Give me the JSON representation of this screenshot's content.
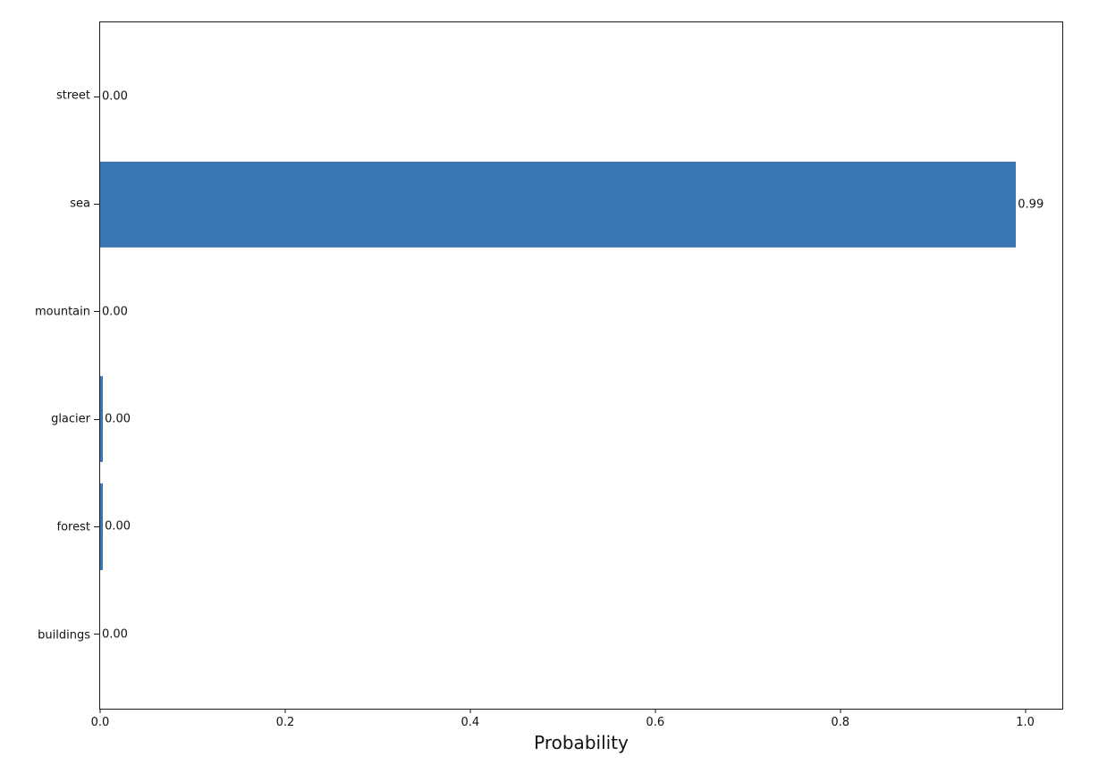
{
  "figure": {
    "background": "#ffffff",
    "bar_color": "#3A76B1",
    "axis_color": "#1a1a1a",
    "text_color": "#111111"
  },
  "chart_data": {
    "type": "bar",
    "orientation": "horizontal",
    "xlabel": "Probability",
    "ylabel": "",
    "title": "",
    "categories": [
      "street",
      "sea",
      "mountain",
      "glacier",
      "forest",
      "buildings"
    ],
    "values": [
      0.0,
      0.99,
      0.0,
      0.003,
      0.003,
      0.0
    ],
    "value_labels": [
      "0.00",
      "0.99",
      "0.00",
      "0.00",
      "0.00",
      "0.00"
    ],
    "x_ticks": [
      {
        "value": 0.0,
        "label": "0.0"
      },
      {
        "value": 0.2,
        "label": "0.2"
      },
      {
        "value": 0.4,
        "label": "0.4"
      },
      {
        "value": 0.6,
        "label": "0.6"
      },
      {
        "value": 0.8,
        "label": "0.8"
      },
      {
        "value": 1.0,
        "label": "1.0"
      }
    ],
    "xlim": [
      0,
      1.04
    ],
    "grid": false,
    "legend": "none",
    "bar_height_fraction": 0.8
  }
}
